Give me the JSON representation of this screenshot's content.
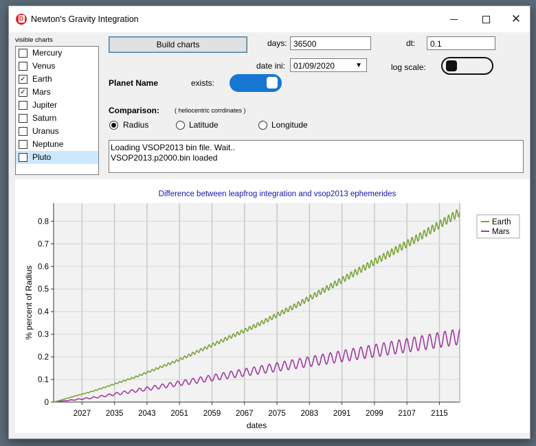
{
  "window": {
    "title": "Newton's Gravity Integration",
    "app_icon": "D",
    "icons": [
      "app-logo-icon",
      "minimize-icon",
      "maximize-icon",
      "close-icon"
    ]
  },
  "planets": {
    "label": "visible charts",
    "items": [
      {
        "name": "Mercury",
        "checked": false
      },
      {
        "name": "Venus",
        "checked": false
      },
      {
        "name": "Earth",
        "checked": true
      },
      {
        "name": "Mars",
        "checked": true
      },
      {
        "name": "Jupiter",
        "checked": false
      },
      {
        "name": "Saturn",
        "checked": false
      },
      {
        "name": "Uranus",
        "checked": false
      },
      {
        "name": "Neptune",
        "checked": false
      },
      {
        "name": "Pluto",
        "checked": false,
        "selected": true
      }
    ]
  },
  "controls": {
    "build_label": "Build charts",
    "days_label": "days:",
    "days_value": "36500",
    "dt_label": "dt:",
    "dt_value": "0.1",
    "date_label": "date ini:",
    "date_value": "01/09/2020",
    "log_label": "log scale:",
    "log_scale_on": false,
    "planet_name": "Planet Name",
    "exists_label": "exists:",
    "exists_on": true,
    "toggle_color": "#1677d3"
  },
  "comparison": {
    "label": "Comparison:",
    "note": "( heliocentric corrdinates )",
    "options": [
      "Radius",
      "Latitude",
      "Longitude"
    ],
    "selected": "Radius"
  },
  "log": {
    "line1": "Loading VSOP2013 bin file.  Wait..",
    "line2": "VSOP2013.p2000.bin loaded"
  },
  "chart_data": {
    "type": "line",
    "title": "Difference between leapfrog integration and vsop2013 ephemerides",
    "xlabel": "dates",
    "ylabel": "% percent of Radius",
    "x_range": [
      2020,
      2120
    ],
    "ylim": [
      0,
      0.88
    ],
    "x_ticks": [
      "2027",
      "2035",
      "2043",
      "2051",
      "2059",
      "2067",
      "2075",
      "2083",
      "2091",
      "2099",
      "2107",
      "2115"
    ],
    "y_ticks": [
      "0",
      "0.1",
      "0.2",
      "0.3",
      "0.4",
      "0.5",
      "0.6",
      "0.7",
      "0.8"
    ],
    "grid": true,
    "legend": "top-right",
    "series": [
      {
        "name": "Earth",
        "color": "#7aa23a",
        "x": [
          2020,
          2030,
          2040,
          2050,
          2060,
          2070,
          2080,
          2090,
          2100,
          2110,
          2120
        ],
        "values": [
          0.0,
          0.05,
          0.11,
          0.18,
          0.26,
          0.34,
          0.43,
          0.53,
          0.63,
          0.73,
          0.84
        ],
        "oscillation_amplitude": 0.018,
        "oscillation_period_years": 1.0
      },
      {
        "name": "Mars",
        "color": "#a03aa0",
        "x": [
          2020,
          2030,
          2040,
          2050,
          2060,
          2070,
          2080,
          2090,
          2100,
          2110,
          2120
        ],
        "values": [
          0.0,
          0.02,
          0.05,
          0.08,
          0.11,
          0.14,
          0.17,
          0.2,
          0.23,
          0.26,
          0.29
        ],
        "oscillation_amplitude": 0.035,
        "oscillation_period_years": 1.88
      }
    ]
  }
}
